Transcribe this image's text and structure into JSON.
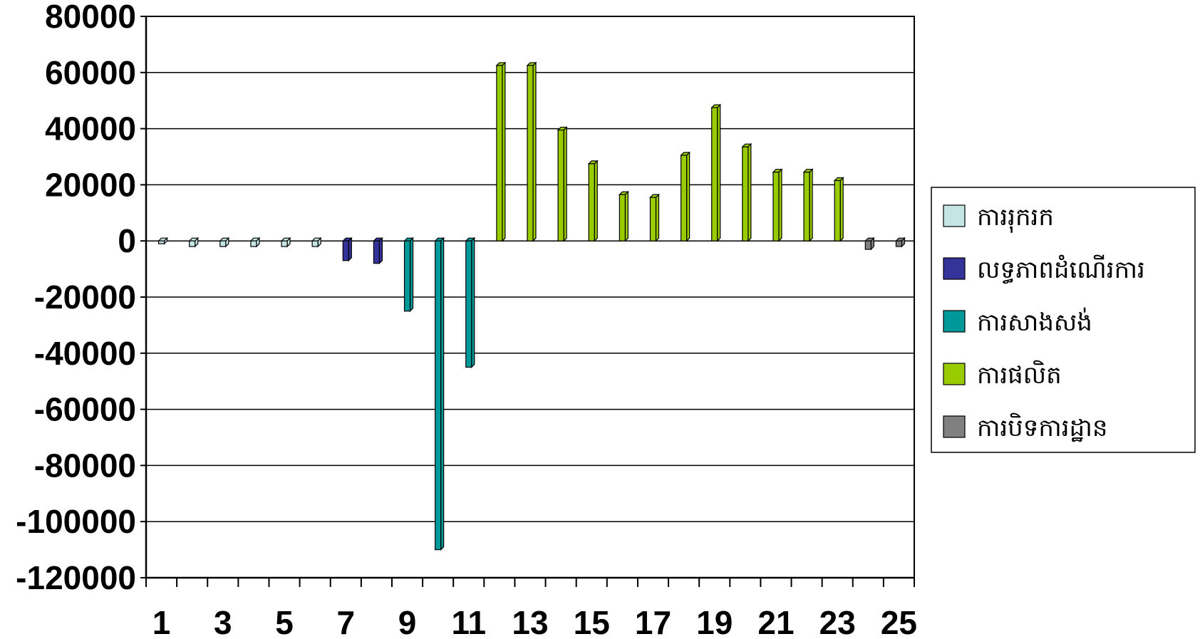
{
  "chart_data": {
    "type": "bar",
    "title": "",
    "xlabel": "",
    "ylabel": "",
    "categories": [
      1,
      2,
      3,
      4,
      5,
      6,
      7,
      8,
      9,
      10,
      11,
      12,
      13,
      14,
      15,
      16,
      17,
      18,
      19,
      20,
      21,
      22,
      23,
      24,
      25
    ],
    "x_tick_labels": [
      "1",
      "3",
      "5",
      "7",
      "9",
      "11",
      "13",
      "15",
      "17",
      "19",
      "21",
      "23",
      "25"
    ],
    "x_tick_label_categories": [
      1,
      3,
      5,
      7,
      9,
      11,
      13,
      15,
      17,
      19,
      21,
      23,
      25
    ],
    "y_ticks": [
      80000,
      60000,
      40000,
      20000,
      0,
      -20000,
      -40000,
      -60000,
      -80000,
      -100000,
      -120000
    ],
    "y_tick_labels": [
      "80000",
      "60000",
      "40000",
      "20000",
      "0",
      "-20000",
      "-40000",
      "-60000",
      "-80000",
      "-100000",
      "-120000"
    ],
    "ylim": [
      -120000,
      80000
    ],
    "grid": true,
    "legend_position": "right",
    "series": [
      {
        "name": "ការរុករក",
        "color": "#c5e4e4",
        "values": [
          -1000,
          -2000,
          -2000,
          -2000,
          -2000,
          -2000,
          0,
          0,
          0,
          0,
          0,
          0,
          0,
          0,
          0,
          0,
          0,
          0,
          0,
          0,
          0,
          0,
          0,
          0,
          0
        ]
      },
      {
        "name": "លទ្ធភាពដំណើរការ",
        "color": "#33339a",
        "values": [
          0,
          0,
          0,
          0,
          0,
          0,
          -7000,
          -8000,
          0,
          0,
          0,
          0,
          0,
          0,
          0,
          0,
          0,
          0,
          0,
          0,
          0,
          0,
          0,
          0,
          0
        ]
      },
      {
        "name": "ការសាងសង់",
        "color": "#009999",
        "values": [
          0,
          0,
          0,
          0,
          0,
          0,
          0,
          0,
          -25000,
          -110000,
          -45000,
          0,
          0,
          0,
          0,
          0,
          0,
          0,
          0,
          0,
          0,
          0,
          0,
          0,
          0
        ]
      },
      {
        "name": "ការផលិត",
        "color": "#99cc00",
        "values": [
          0,
          0,
          0,
          0,
          0,
          0,
          0,
          0,
          0,
          0,
          0,
          62500,
          62500,
          39500,
          27500,
          16500,
          15500,
          30500,
          47500,
          33500,
          24500,
          24500,
          21500,
          0,
          0
        ]
      },
      {
        "name": "ការបិទការដ្ឋាន",
        "color": "#808080",
        "values": [
          0,
          0,
          0,
          0,
          0,
          0,
          0,
          0,
          0,
          0,
          0,
          0,
          0,
          0,
          0,
          0,
          0,
          0,
          0,
          0,
          0,
          0,
          0,
          -3000,
          -2000
        ]
      }
    ]
  }
}
